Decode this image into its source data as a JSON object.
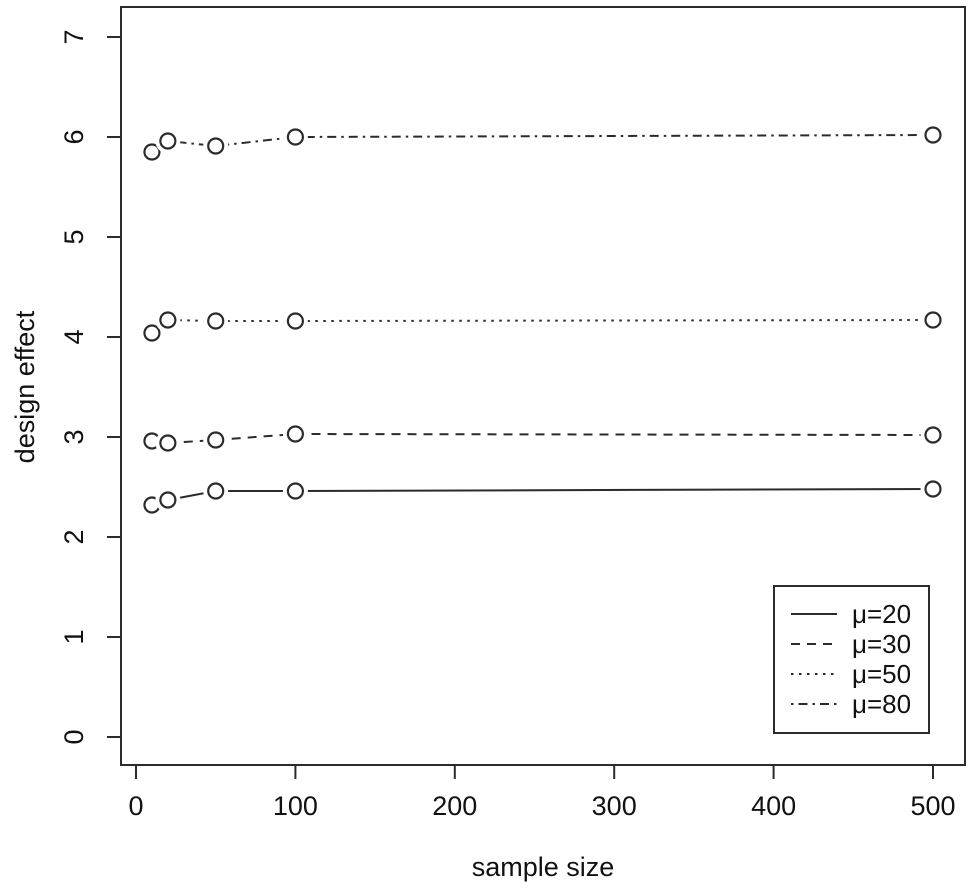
{
  "chart_data": {
    "type": "line",
    "title": "",
    "xlabel": "sample size",
    "ylabel": "design effect",
    "x_ticks": [
      0,
      100,
      200,
      300,
      400,
      500
    ],
    "y_ticks": [
      0,
      1,
      2,
      3,
      4,
      5,
      6,
      7
    ],
    "xlim": [
      -10,
      520
    ],
    "ylim": [
      -0.3,
      7.3
    ],
    "grid": false,
    "marker": "open-circle",
    "color": "#2b2b2b",
    "legend_position": "bottom-right",
    "x": [
      10,
      20,
      50,
      100,
      500
    ],
    "series": [
      {
        "name": "μ=20",
        "style": "solid",
        "values": [
          2.32,
          2.37,
          2.46,
          2.46,
          2.48
        ]
      },
      {
        "name": "μ=30",
        "style": "dashed",
        "values": [
          2.96,
          2.94,
          2.97,
          3.03,
          3.02
        ]
      },
      {
        "name": "μ=50",
        "style": "dotted",
        "values": [
          4.04,
          4.17,
          4.16,
          4.16,
          4.17
        ]
      },
      {
        "name": "μ=80",
        "style": "dashdot",
        "values": [
          5.85,
          5.96,
          5.91,
          6.0,
          6.02
        ]
      }
    ]
  }
}
